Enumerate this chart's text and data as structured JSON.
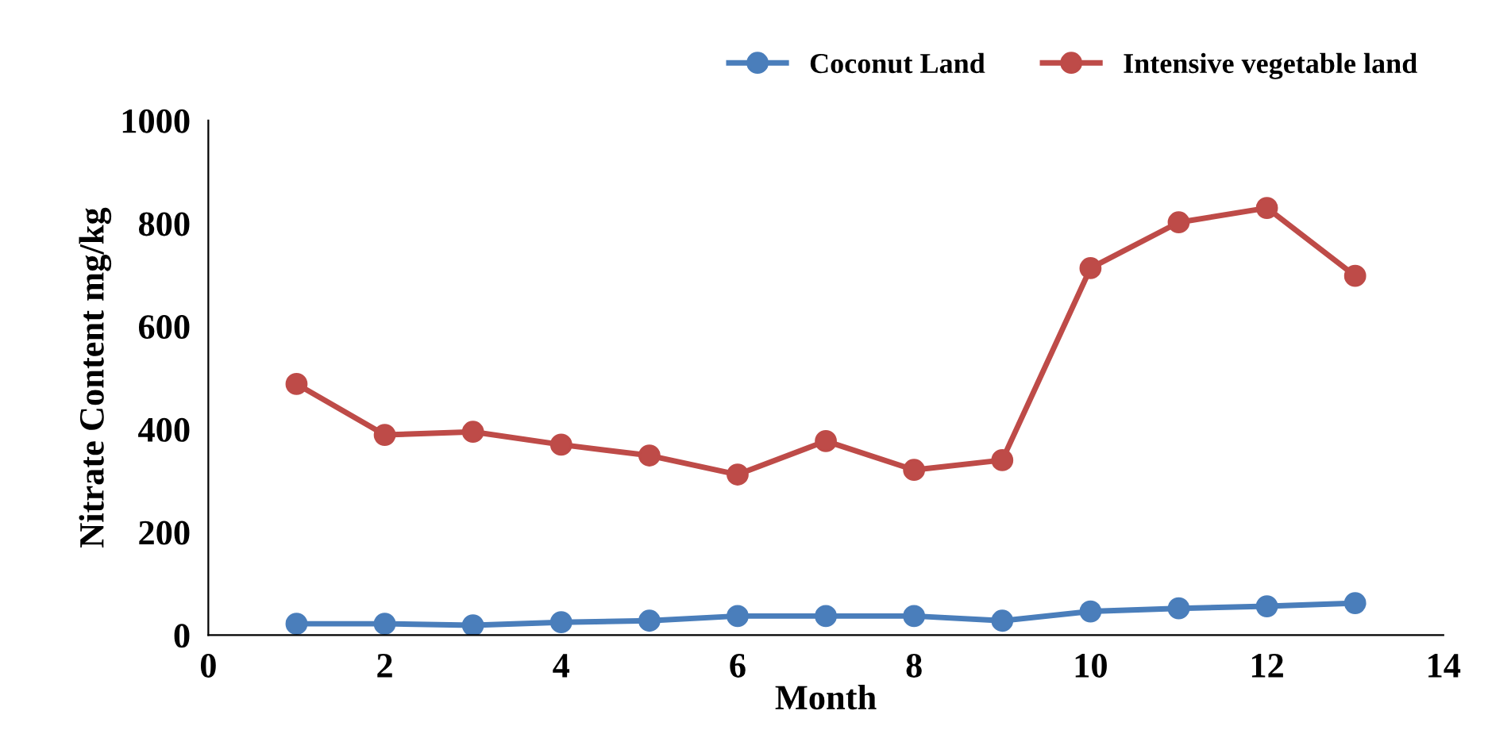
{
  "chart_data": {
    "type": "line",
    "xlabel": "Month",
    "ylabel": "Nitrate Content mg/kg",
    "x": [
      1,
      2,
      3,
      4,
      5,
      6,
      7,
      8,
      9,
      10,
      11,
      12,
      13
    ],
    "series": [
      {
        "name": "Coconut Land",
        "color": "#4a7ebb",
        "values": [
          22,
          22,
          19,
          25,
          28,
          37,
          37,
          37,
          28,
          46,
          52,
          56,
          62
        ]
      },
      {
        "name": "Intensive vegetable land",
        "color": "#be4b48",
        "values": [
          488,
          389,
          395,
          370,
          349,
          312,
          377,
          321,
          340,
          713,
          802,
          830,
          698
        ]
      }
    ],
    "xlim": [
      0,
      14
    ],
    "xticks": [
      0,
      2,
      4,
      6,
      8,
      10,
      12,
      14
    ],
    "ylim": [
      0,
      1000
    ],
    "yticks": [
      0,
      200,
      400,
      600,
      800,
      1000
    ],
    "grid": false,
    "legend": "top right",
    "marker": "circle",
    "line_style": "solid"
  }
}
